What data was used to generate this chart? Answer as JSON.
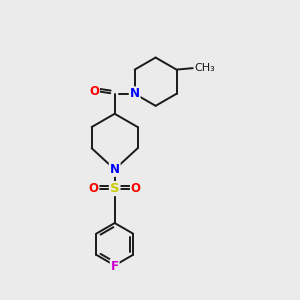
{
  "background_color": "#ebebeb",
  "bond_color": "#1a1a1a",
  "N_color": "#0000ff",
  "O_color": "#ff0000",
  "S_color": "#cccc00",
  "F_color": "#cc00cc",
  "font_size": 8.5,
  "linewidth": 1.4,
  "fig_width": 3.0,
  "fig_height": 3.0,
  "dpi": 100,
  "xlim": [
    0,
    10
  ],
  "ylim": [
    0,
    10
  ]
}
